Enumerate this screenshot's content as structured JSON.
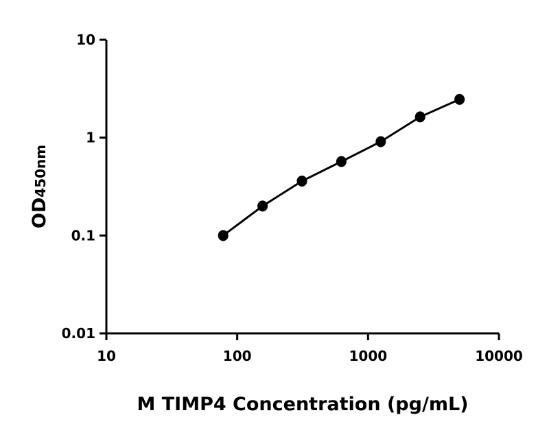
{
  "chart_data": {
    "type": "scatter",
    "title": "",
    "xlabel": "M TIMP4 Concentration (pg/mL)",
    "ylabel_main": "OD",
    "ylabel_sub": "450nm",
    "x_scale": "log",
    "y_scale": "log",
    "xlim": [
      10,
      10000
    ],
    "ylim": [
      0.01,
      10
    ],
    "x_ticks": [
      "10",
      "100",
      "1000",
      "10000"
    ],
    "y_ticks": [
      "0.01",
      "0.1",
      "1",
      "10"
    ],
    "grid": false,
    "fit_line": true,
    "color": "#000000",
    "x": [
      78.125,
      156.25,
      312.5,
      625,
      1250,
      2500,
      5000
    ],
    "y": [
      0.1,
      0.2,
      0.36,
      0.57,
      0.91,
      1.63,
      2.46
    ]
  }
}
